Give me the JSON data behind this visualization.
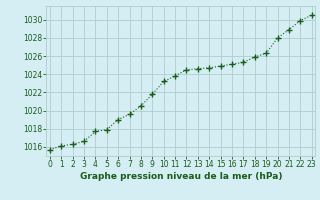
{
  "x": [
    0,
    1,
    2,
    3,
    4,
    5,
    6,
    7,
    8,
    9,
    10,
    11,
    12,
    13,
    14,
    15,
    16,
    17,
    18,
    19,
    20,
    21,
    22,
    23
  ],
  "y": [
    1015.7,
    1016.1,
    1016.3,
    1016.6,
    1017.7,
    1017.9,
    1019.0,
    1019.6,
    1020.5,
    1021.8,
    1023.2,
    1023.8,
    1024.5,
    1024.6,
    1024.7,
    1024.9,
    1025.1,
    1025.3,
    1025.9,
    1026.3,
    1028.0,
    1028.9,
    1029.9,
    1030.5
  ],
  "line_color": "#1a5c1a",
  "marker": "+",
  "marker_size": 4,
  "marker_lw": 1.0,
  "line_width": 0.8,
  "bg_color": "#d4eef4",
  "grid_color": "#b0cccc",
  "xlabel": "Graphe pression niveau de la mer (hPa)",
  "xlabel_color": "#1a5c1a",
  "tick_color": "#1a5c1a",
  "ylim": [
    1015.0,
    1031.5
  ],
  "xlim": [
    -0.3,
    23.3
  ],
  "yticks": [
    1016,
    1018,
    1020,
    1022,
    1024,
    1026,
    1028,
    1030
  ],
  "xticks": [
    0,
    1,
    2,
    3,
    4,
    5,
    6,
    7,
    8,
    9,
    10,
    11,
    12,
    13,
    14,
    15,
    16,
    17,
    18,
    19,
    20,
    21,
    22,
    23
  ],
  "tick_fontsize": 5.5,
  "xlabel_fontsize": 6.5
}
